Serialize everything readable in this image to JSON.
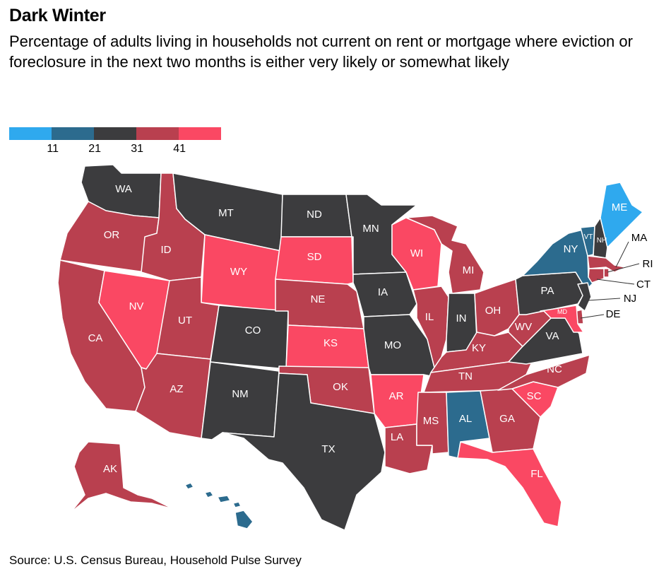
{
  "header": {
    "title": "Dark Winter",
    "subtitle": "Percentage of adults living in households not current on rent or mortgage where eviction or foreclosure in the next two months is either very likely or somewhat likely"
  },
  "legend": {
    "colors": [
      "#2fa9ee",
      "#2c6b8e",
      "#3c3c3e",
      "#b9404f",
      "#fa4863"
    ],
    "ticks": [
      "11",
      "21",
      "31",
      "41"
    ]
  },
  "categories": {
    "c1": "#2fa9ee",
    "c2": "#2c6b8e",
    "c3": "#3c3c3e",
    "c4": "#b9404f",
    "c5": "#fa4863"
  },
  "states": [
    {
      "abbr": "WA",
      "bin": "c3"
    },
    {
      "abbr": "OR",
      "bin": "c4"
    },
    {
      "abbr": "CA",
      "bin": "c4"
    },
    {
      "abbr": "NV",
      "bin": "c5"
    },
    {
      "abbr": "ID",
      "bin": "c4"
    },
    {
      "abbr": "MT",
      "bin": "c3"
    },
    {
      "abbr": "WY",
      "bin": "c5"
    },
    {
      "abbr": "UT",
      "bin": "c4"
    },
    {
      "abbr": "AZ",
      "bin": "c4"
    },
    {
      "abbr": "CO",
      "bin": "c3"
    },
    {
      "abbr": "NM",
      "bin": "c3"
    },
    {
      "abbr": "ND",
      "bin": "c3"
    },
    {
      "abbr": "SD",
      "bin": "c5"
    },
    {
      "abbr": "NE",
      "bin": "c4"
    },
    {
      "abbr": "KS",
      "bin": "c5"
    },
    {
      "abbr": "OK",
      "bin": "c4"
    },
    {
      "abbr": "TX",
      "bin": "c3"
    },
    {
      "abbr": "MN",
      "bin": "c3"
    },
    {
      "abbr": "IA",
      "bin": "c3"
    },
    {
      "abbr": "MO",
      "bin": "c3"
    },
    {
      "abbr": "AR",
      "bin": "c5"
    },
    {
      "abbr": "LA",
      "bin": "c4"
    },
    {
      "abbr": "WI",
      "bin": "c5"
    },
    {
      "abbr": "IL",
      "bin": "c4"
    },
    {
      "abbr": "MI",
      "bin": "c4"
    },
    {
      "abbr": "IN",
      "bin": "c3"
    },
    {
      "abbr": "OH",
      "bin": "c4"
    },
    {
      "abbr": "KY",
      "bin": "c4"
    },
    {
      "abbr": "TN",
      "bin": "c4"
    },
    {
      "abbr": "MS",
      "bin": "c4"
    },
    {
      "abbr": "AL",
      "bin": "c2"
    },
    {
      "abbr": "GA",
      "bin": "c4"
    },
    {
      "abbr": "FL",
      "bin": "c5"
    },
    {
      "abbr": "SC",
      "bin": "c5"
    },
    {
      "abbr": "NC",
      "bin": "c4"
    },
    {
      "abbr": "VA",
      "bin": "c3"
    },
    {
      "abbr": "WV",
      "bin": "c4"
    },
    {
      "abbr": "PA",
      "bin": "c3"
    },
    {
      "abbr": "NY",
      "bin": "c2"
    },
    {
      "abbr": "VT",
      "bin": "c2"
    },
    {
      "abbr": "NH",
      "bin": "c3"
    },
    {
      "abbr": "ME",
      "bin": "c1"
    },
    {
      "abbr": "MA",
      "bin": "c4"
    },
    {
      "abbr": "RI",
      "bin": "c4"
    },
    {
      "abbr": "CT",
      "bin": "c4"
    },
    {
      "abbr": "NJ",
      "bin": "c3"
    },
    {
      "abbr": "DE",
      "bin": "c4"
    },
    {
      "abbr": "MD",
      "bin": "c5"
    },
    {
      "abbr": "AK",
      "bin": "c4"
    },
    {
      "abbr": "HI",
      "bin": "c2"
    }
  ],
  "footer": {
    "source": "Source: U.S. Census Bureau, Household Pulse Survey"
  }
}
